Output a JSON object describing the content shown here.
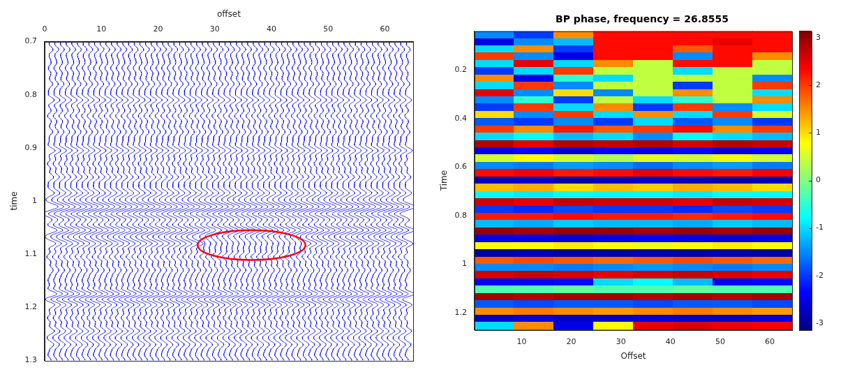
{
  "chart_data": [
    {
      "type": "wiggle",
      "x_label": "offset",
      "y_label": "time",
      "xlim": [
        0,
        65
      ],
      "xticks": [
        0,
        10,
        20,
        30,
        40,
        50,
        60
      ],
      "ylim": [
        0.7,
        1.3
      ],
      "yticks": [
        0.7,
        0.8,
        0.9,
        1,
        1.1,
        1.2,
        1.3
      ],
      "color": "#0000ff",
      "offsets": [
        1,
        2,
        3,
        4,
        5,
        6,
        7,
        8,
        9,
        10,
        11,
        12,
        13,
        14,
        15,
        16,
        17,
        18,
        19,
        20,
        21,
        22,
        23,
        24,
        25,
        26,
        27,
        28,
        29,
        30,
        31,
        32,
        33,
        34,
        35,
        36,
        37,
        38,
        39,
        40,
        41,
        42,
        43,
        44,
        45,
        46,
        47,
        48,
        49,
        50,
        51,
        52,
        53,
        54,
        55,
        56,
        57,
        58,
        59,
        60,
        61,
        62,
        63,
        64
      ],
      "events": [
        {
          "time": 0.715,
          "amplitude": 0.4
        },
        {
          "time": 0.75,
          "amplitude": -0.3
        },
        {
          "time": 0.78,
          "amplitude": 0.35
        },
        {
          "time": 0.81,
          "amplitude": 0.6
        },
        {
          "time": 0.84,
          "amplitude": -0.4
        },
        {
          "time": 0.87,
          "amplitude": 0.35
        },
        {
          "time": 0.905,
          "amplitude": 0.7
        },
        {
          "time": 0.93,
          "amplitude": -0.4
        },
        {
          "time": 0.955,
          "amplitude": 0.5
        },
        {
          "time": 0.985,
          "amplitude": 0.6
        },
        {
          "time": 1.01,
          "amplitude": 0.9
        },
        {
          "time": 1.025,
          "amplitude": -0.8
        },
        {
          "time": 1.055,
          "amplitude": 1.0
        },
        {
          "time": 1.08,
          "amplitude": 0.8,
          "offsets": [
            1,
            27
          ]
        },
        {
          "time": 1.08,
          "amplitude": 0.25,
          "offsets": [
            28,
            45
          ]
        },
        {
          "time": 1.08,
          "amplitude": 0.8,
          "offsets": [
            46,
            64
          ]
        },
        {
          "time": 1.105,
          "amplitude": -0.5
        },
        {
          "time": 1.13,
          "amplitude": 0.4
        },
        {
          "time": 1.15,
          "amplitude": -0.3
        },
        {
          "time": 1.175,
          "amplitude": 1.0
        },
        {
          "time": 1.195,
          "amplitude": 0.7
        },
        {
          "time": 1.22,
          "amplitude": -0.4
        },
        {
          "time": 1.245,
          "amplitude": 0.6
        },
        {
          "time": 1.27,
          "amplitude": 0.5
        },
        {
          "time": 1.29,
          "amplitude": -0.3
        }
      ],
      "annotation": {
        "shape": "ellipse",
        "center": [
          36.5,
          1.083
        ],
        "radii": [
          9.5,
          0.028
        ],
        "color": "#ff0000"
      }
    },
    {
      "type": "heatmap",
      "title": "BP phase, frequency = 26.8555",
      "x_label": "Offset",
      "y_label": "Time",
      "xlim": [
        0.5,
        64.5
      ],
      "xticks": [
        10,
        20,
        30,
        40,
        50,
        60
      ],
      "ylim": [
        0.04,
        1.27
      ],
      "yticks": [
        0.2,
        0.4,
        0.6,
        0.8,
        1,
        1.2
      ],
      "x": [
        4.5,
        12.5,
        20.5,
        28.5,
        36.5,
        44.5,
        52.5,
        60.5
      ],
      "y": [
        0.055,
        0.085,
        0.115,
        0.145,
        0.175,
        0.205,
        0.235,
        0.265,
        0.295,
        0.325,
        0.355,
        0.385,
        0.415,
        0.445,
        0.475,
        0.505,
        0.535,
        0.565,
        0.595,
        0.625,
        0.655,
        0.685,
        0.715,
        0.745,
        0.775,
        0.805,
        0.835,
        0.865,
        0.895,
        0.925,
        0.955,
        0.985,
        1.015,
        1.045,
        1.075,
        1.105,
        1.135,
        1.165,
        1.195,
        1.225,
        1.255
      ],
      "z": [
        [
          -1.5,
          -2,
          1.5,
          2.3,
          2.3,
          2.3,
          2.3,
          2.3
        ],
        [
          -2.5,
          -1.5,
          -1.2,
          2.3,
          2.3,
          2.3,
          2.5,
          2.3
        ],
        [
          -1,
          1.5,
          -2,
          2.3,
          2.3,
          1.8,
          2.3,
          2.3
        ],
        [
          2,
          -1.5,
          -2.5,
          2.3,
          2.3,
          -1.5,
          2.3,
          1.5
        ],
        [
          -1,
          2.5,
          -1,
          1.5,
          0.4,
          2.3,
          2.3,
          0.4
        ],
        [
          -2,
          -1,
          2,
          0.4,
          0.4,
          -1,
          0.4,
          0.4
        ],
        [
          1.5,
          -2.5,
          -0.5,
          -1,
          0.4,
          0.4,
          0.4,
          -1.5
        ],
        [
          -1,
          2,
          -1.5,
          0.4,
          0.4,
          -2,
          0.4,
          2
        ],
        [
          2.5,
          -1.5,
          1,
          -1.5,
          0.4,
          1.5,
          0.4,
          -1
        ],
        [
          -1.5,
          -0.5,
          -2,
          0.4,
          -1,
          -0.5,
          0.4,
          1.5
        ],
        [
          -2,
          2,
          -1,
          1.5,
          -2,
          2,
          -1.5,
          -1
        ],
        [
          1,
          -1.5,
          2,
          -1,
          1.5,
          -1,
          2,
          0.5
        ],
        [
          -1.8,
          -2,
          -1.5,
          -2,
          -1,
          -1.8,
          -1.5,
          -2
        ],
        [
          2,
          1.5,
          2.2,
          1.8,
          2,
          2.3,
          1.5,
          2
        ],
        [
          -1,
          -0.8,
          -1.2,
          -1,
          -1.5,
          -0.8,
          -1,
          -1.2
        ],
        [
          2.8,
          2.5,
          2.8,
          2.7,
          2.8,
          2.6,
          2.8,
          2.7
        ],
        [
          -2.5,
          -2.3,
          -2.6,
          -2.4,
          -2.5,
          -2.3,
          -2.6,
          -2.4
        ],
        [
          0.5,
          0.8,
          0.5,
          0.3,
          0.6,
          0.5,
          0.7,
          0.5
        ],
        [
          -1.5,
          -1.6,
          -1.4,
          -1.5,
          -1.7,
          -1.5,
          -1.4,
          -1.6
        ],
        [
          2.3,
          2.4,
          2.2,
          2.3,
          2.5,
          2.3,
          2.2,
          2.4
        ],
        [
          -2.8,
          -2.7,
          -2.9,
          -2.8,
          -2.7,
          -2.8,
          -2.9,
          -2.8
        ],
        [
          1.2,
          1.3,
          1,
          1.2,
          1.1,
          1.3,
          1.2,
          1
        ],
        [
          -0.8,
          -0.9,
          -0.7,
          -0.8,
          -0.8,
          -0.9,
          -0.7,
          -0.8
        ],
        [
          2.6,
          2.5,
          2.7,
          2.6,
          2.6,
          2.5,
          2.7,
          2.6
        ],
        [
          -2,
          -2.1,
          -1.9,
          -2,
          -2,
          -2.1,
          -1.9,
          -2
        ],
        [
          2.2,
          2.2,
          2.3,
          2.2,
          2.2,
          2.1,
          2.2,
          2.3
        ],
        [
          -1.2,
          -1.3,
          -1.1,
          -1.2,
          -1.2,
          -1.3,
          -1.1,
          -1.2
        ],
        [
          3,
          2.9,
          3,
          3,
          2.9,
          3,
          2.9,
          3
        ],
        [
          -2.5,
          -2.5,
          -2.6,
          -2.5,
          -2.4,
          -2.5,
          -2.6,
          -2.5
        ],
        [
          0.8,
          0.8,
          0.9,
          0.8,
          0.7,
          0.8,
          0.9,
          0.8
        ],
        [
          -2.9,
          -2.8,
          -2.9,
          -2.9,
          -2.8,
          -2.9,
          -2.8,
          -2.9
        ],
        [
          1.8,
          1.9,
          1.8,
          1.7,
          1.8,
          1.9,
          1.8,
          1.7
        ],
        [
          -1.5,
          -1.5,
          -1.6,
          -1.5,
          -1.4,
          -1.5,
          -1.6,
          -1.5
        ],
        [
          2.6,
          2.7,
          2.6,
          2.5,
          2.6,
          2.7,
          2.6,
          2.5
        ],
        [
          -2.4,
          -2.4,
          -2.3,
          -1,
          -0.8,
          -1.2,
          -2.4,
          -2.3
        ],
        [
          -0.3,
          -0.3,
          -0.2,
          -0.3,
          -0.3,
          -0.2,
          -0.3,
          -0.3
        ],
        [
          2.9,
          2.8,
          2.9,
          2.9,
          2.8,
          2.9,
          2.8,
          2.9
        ],
        [
          -1.8,
          -1.9,
          -1.8,
          -1.8,
          -1.9,
          -1.8,
          -1.8,
          -1.9
        ],
        [
          1.5,
          1.6,
          1.5,
          1.4,
          1.5,
          1.6,
          1.5,
          1.4
        ],
        [
          -2.7,
          -2.6,
          -2.7,
          -2.7,
          -2.6,
          -2.7,
          -2.7,
          -2.6
        ],
        [
          -1,
          1.5,
          -2.5,
          0.8,
          2.5,
          2.6,
          2.5,
          2.4
        ]
      ],
      "colorbar": {
        "range": [
          -3.1416,
          3.1416
        ],
        "ticks": [
          -3,
          -2,
          -1,
          0,
          1,
          2,
          3
        ]
      }
    }
  ]
}
